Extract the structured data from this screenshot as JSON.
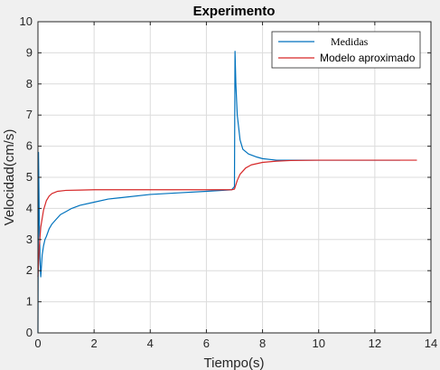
{
  "chart_data": {
    "type": "line",
    "title": "Experimento",
    "xlabel": "Tiempo(s)",
    "ylabel": "Velocidad(cm/s)",
    "xlim": [
      0,
      14
    ],
    "ylim": [
      0,
      10
    ],
    "xticks": [
      0,
      2,
      4,
      6,
      8,
      10,
      12,
      14
    ],
    "yticks": [
      0,
      1,
      2,
      3,
      4,
      5,
      6,
      7,
      8,
      9,
      10
    ],
    "grid": true,
    "legend_position": "top-right",
    "series": [
      {
        "name": "Medidas",
        "color": "#0072bd",
        "x": [
          0,
          0.02,
          0.05,
          0.08,
          0.1,
          0.15,
          0.2,
          0.25,
          0.3,
          0.4,
          0.5,
          0.6,
          0.8,
          1.0,
          1.2,
          1.5,
          2.0,
          2.5,
          3.0,
          4.0,
          5.0,
          6.0,
          6.9,
          7.0,
          7.02,
          7.05,
          7.1,
          7.2,
          7.3,
          7.5,
          7.8,
          8.0,
          8.5,
          9.0,
          10.0,
          11.0,
          12.0,
          12.9
        ],
        "y": [
          0,
          5.8,
          3.5,
          2.2,
          1.8,
          2.5,
          2.8,
          3.0,
          3.1,
          3.35,
          3.5,
          3.6,
          3.8,
          3.9,
          4.0,
          4.1,
          4.2,
          4.3,
          4.35,
          4.45,
          4.5,
          4.55,
          4.6,
          4.7,
          9.05,
          8.0,
          7.0,
          6.2,
          5.9,
          5.75,
          5.65,
          5.6,
          5.55,
          5.55,
          5.55,
          5.55,
          5.55,
          5.55
        ]
      },
      {
        "name": "Modelo aproximado",
        "color": "#d62728",
        "x": [
          0,
          0.05,
          0.1,
          0.2,
          0.3,
          0.4,
          0.5,
          0.7,
          1.0,
          1.5,
          2.0,
          3.0,
          4.0,
          5.0,
          6.0,
          6.9,
          7.0,
          7.1,
          7.2,
          7.4,
          7.6,
          8.0,
          8.5,
          9.0,
          10.0,
          11.0,
          12.0,
          13.0,
          13.5
        ],
        "y": [
          1.8,
          2.8,
          3.4,
          3.95,
          4.25,
          4.4,
          4.48,
          4.55,
          4.58,
          4.59,
          4.6,
          4.6,
          4.6,
          4.6,
          4.6,
          4.6,
          4.62,
          4.9,
          5.1,
          5.3,
          5.4,
          5.48,
          5.52,
          5.54,
          5.55,
          5.55,
          5.55,
          5.55,
          5.55
        ]
      }
    ]
  }
}
